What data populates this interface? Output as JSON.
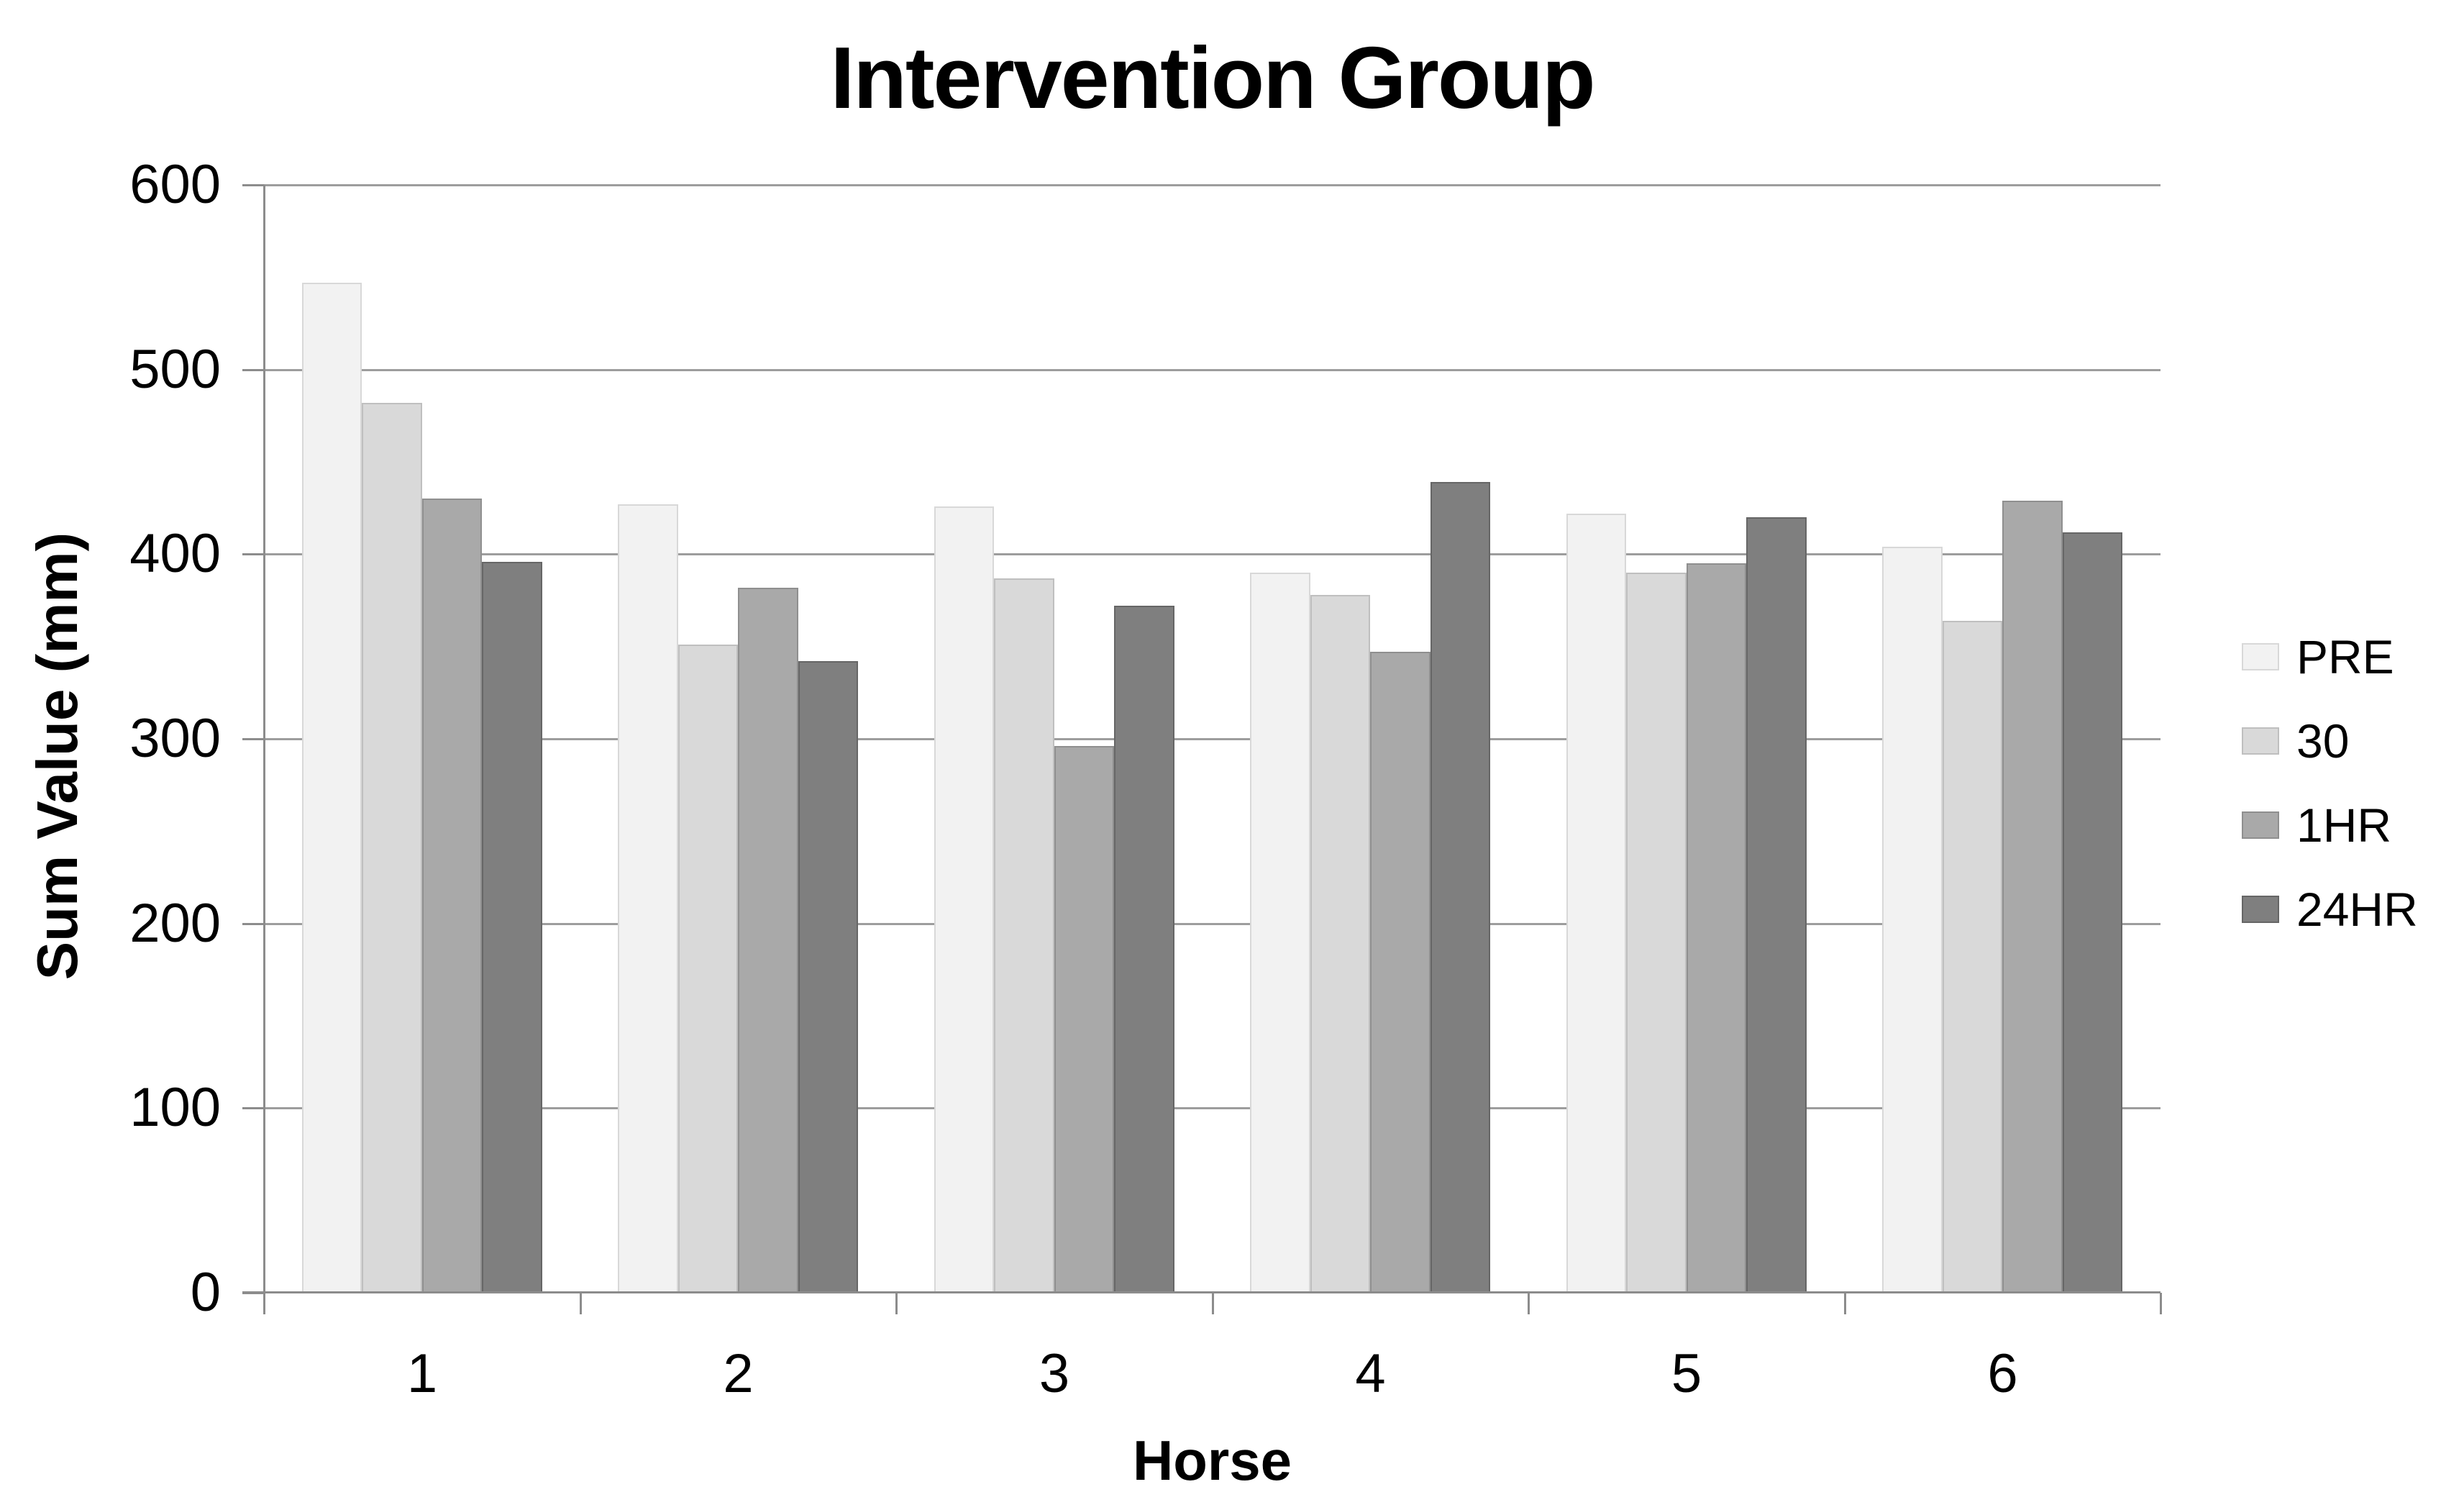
{
  "chart_data": {
    "type": "bar",
    "title": "Intervention Group",
    "xlabel": "Horse",
    "ylabel": "Sum Value (mm)",
    "categories": [
      "1",
      "2",
      "3",
      "4",
      "5",
      "6"
    ],
    "series": [
      {
        "name": "PRE",
        "color": "#f2f2f2",
        "border": "#d8d8d8",
        "values": [
          547,
          427,
          426,
          390,
          422,
          404
        ]
      },
      {
        "name": "30",
        "color": "#d9d9d9",
        "border": "#bfbfbf",
        "values": [
          482,
          351,
          387,
          378,
          390,
          364
        ]
      },
      {
        "name": "1HR",
        "color": "#a9a9a9",
        "border": "#8f8f8f",
        "values": [
          430,
          382,
          296,
          347,
          395,
          429
        ]
      },
      {
        "name": "24HR",
        "color": "#7f7f7f",
        "border": "#666666",
        "values": [
          396,
          342,
          372,
          439,
          420,
          412
        ]
      }
    ],
    "ylim": [
      0,
      600
    ],
    "yticks": [
      600,
      500,
      400,
      300,
      200,
      100,
      0
    ],
    "grid": true,
    "legend_position": "right",
    "colors": {
      "grid": "#9d9d9d",
      "axis": "#8c8c8c",
      "text": "#000000",
      "background": "#ffffff"
    }
  }
}
